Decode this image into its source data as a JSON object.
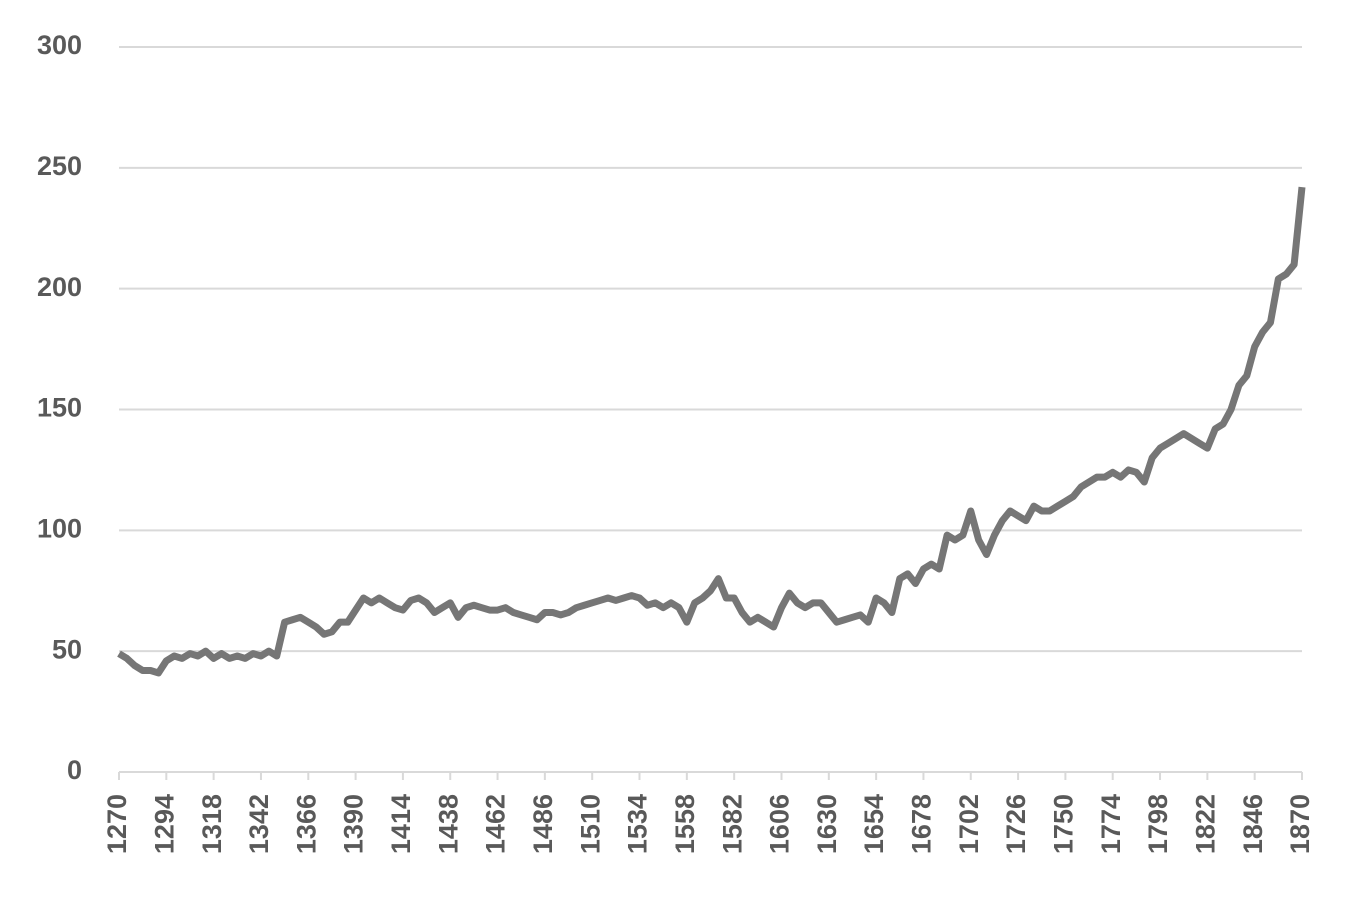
{
  "chart_data": {
    "type": "line",
    "x": [
      1270,
      1274,
      1278,
      1282,
      1286,
      1290,
      1294,
      1298,
      1302,
      1306,
      1310,
      1314,
      1318,
      1322,
      1326,
      1330,
      1334,
      1338,
      1342,
      1346,
      1350,
      1354,
      1358,
      1362,
      1366,
      1370,
      1374,
      1378,
      1382,
      1386,
      1390,
      1394,
      1398,
      1402,
      1406,
      1410,
      1414,
      1418,
      1422,
      1426,
      1430,
      1434,
      1438,
      1442,
      1446,
      1450,
      1454,
      1458,
      1462,
      1466,
      1470,
      1474,
      1478,
      1482,
      1486,
      1490,
      1494,
      1498,
      1502,
      1506,
      1510,
      1514,
      1518,
      1522,
      1526,
      1530,
      1534,
      1538,
      1542,
      1546,
      1550,
      1554,
      1558,
      1562,
      1566,
      1570,
      1574,
      1578,
      1582,
      1586,
      1590,
      1594,
      1598,
      1602,
      1606,
      1610,
      1614,
      1618,
      1622,
      1626,
      1630,
      1634,
      1638,
      1642,
      1646,
      1650,
      1654,
      1658,
      1662,
      1666,
      1670,
      1674,
      1678,
      1682,
      1686,
      1690,
      1694,
      1698,
      1702,
      1706,
      1710,
      1714,
      1718,
      1722,
      1726,
      1730,
      1734,
      1738,
      1742,
      1746,
      1750,
      1754,
      1758,
      1762,
      1766,
      1770,
      1774,
      1778,
      1782,
      1786,
      1790,
      1794,
      1798,
      1802,
      1806,
      1810,
      1814,
      1818,
      1822,
      1826,
      1830,
      1834,
      1838,
      1842,
      1846,
      1850,
      1854,
      1858,
      1862,
      1866,
      1870
    ],
    "series": [
      {
        "color": "#767676",
        "values": [
          49,
          47,
          44,
          42,
          42,
          41,
          46,
          48,
          47,
          49,
          48,
          50,
          47,
          49,
          47,
          48,
          47,
          49,
          48,
          50,
          48,
          62,
          63,
          64,
          62,
          60,
          57,
          58,
          62,
          62,
          67,
          72,
          70,
          72,
          70,
          68,
          67,
          71,
          72,
          70,
          66,
          68,
          70,
          64,
          68,
          69,
          68,
          67,
          67,
          68,
          66,
          65,
          64,
          63,
          66,
          66,
          65,
          66,
          68,
          69,
          70,
          71,
          72,
          71,
          72,
          73,
          72,
          69,
          70,
          68,
          70,
          68,
          62,
          70,
          72,
          75,
          80,
          72,
          72,
          66,
          62,
          64,
          62,
          60,
          68,
          74,
          70,
          68,
          70,
          70,
          66,
          62,
          63,
          64,
          65,
          62,
          72,
          70,
          66,
          80,
          82,
          78,
          84,
          86,
          84,
          98,
          96,
          98,
          108,
          96,
          90,
          98,
          104,
          108,
          106,
          104,
          110,
          108,
          108,
          110,
          112,
          114,
          118,
          120,
          122,
          122,
          124,
          122,
          125,
          124,
          120,
          130,
          134,
          136,
          138,
          140,
          138,
          136,
          134,
          142,
          144,
          150,
          160,
          164,
          176,
          182,
          186,
          204,
          206,
          210,
          242
        ]
      }
    ],
    "xlim": [
      1270,
      1870
    ],
    "xticks": [
      1270,
      1294,
      1318,
      1342,
      1366,
      1390,
      1414,
      1438,
      1462,
      1486,
      1510,
      1534,
      1558,
      1582,
      1606,
      1630,
      1654,
      1678,
      1702,
      1726,
      1750,
      1774,
      1798,
      1822,
      1846,
      1870
    ],
    "ylim": [
      0,
      300
    ],
    "yticks": [
      0,
      50,
      100,
      150,
      200,
      250,
      300
    ],
    "grid": true
  }
}
